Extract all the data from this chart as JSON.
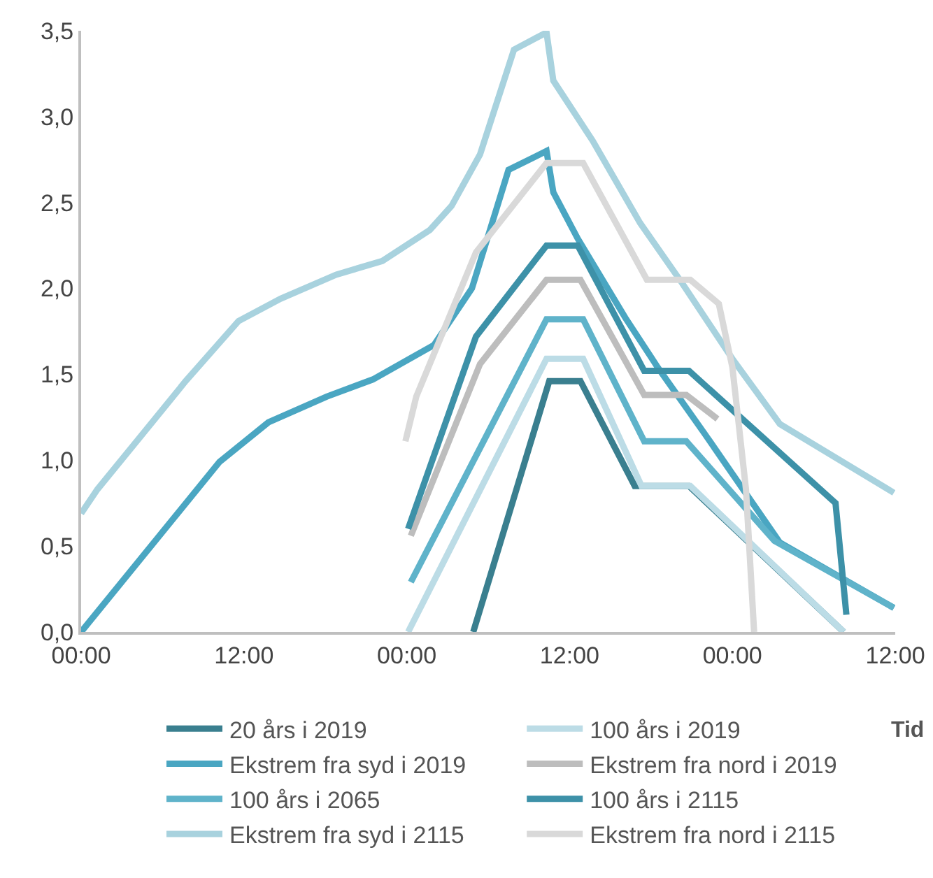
{
  "chart_data": {
    "type": "line",
    "xlabel": "Tid",
    "xlim": [
      "2019-01-01T00:00",
      "2019-01-03T12:00"
    ],
    "xticks": [
      {
        "value": "2019-01-01T00:00",
        "label": "00:00"
      },
      {
        "value": "2019-01-01T12:00",
        "label": "12:00"
      },
      {
        "value": "2019-01-02T00:00",
        "label": "00:00"
      },
      {
        "value": "2019-01-02T12:00",
        "label": "12:00"
      },
      {
        "value": "2019-01-03T00:00",
        "label": "00:00"
      },
      {
        "value": "2019-01-03T12:00",
        "label": "12:00"
      }
    ],
    "ylim": [
      0,
      3.5
    ],
    "yticks": [
      {
        "value": 0,
        "label": "0,0"
      },
      {
        "value": 0.5,
        "label": "0,5"
      },
      {
        "value": 1,
        "label": "1,0"
      },
      {
        "value": 1.5,
        "label": "1,5"
      },
      {
        "value": 2,
        "label": "2,0"
      },
      {
        "value": 2.5,
        "label": "2,5"
      },
      {
        "value": 3,
        "label": "3,0"
      },
      {
        "value": 3.5,
        "label": "3,5"
      }
    ],
    "grid": false,
    "legend": "bottom",
    "marker": "none",
    "line_style": "solid",
    "series": [
      {
        "name": "20 års i 2019",
        "color": "#3a7f8f",
        "x": [
          "2019-01-02T04:54",
          "2019-01-02T10:30",
          "2019-01-02T12:48",
          "2019-01-02T16:48",
          "2019-01-02T20:48",
          "2019-01-03T08:12"
        ],
        "values": [
          0,
          1.46,
          1.46,
          0.85,
          0.85,
          0
        ]
      },
      {
        "name": "100 års i 2019",
        "color": "#bcdce6",
        "x": [
          "2019-01-02T00:06",
          "2019-01-02T10:18",
          "2019-01-02T13:00",
          "2019-01-02T17:18",
          "2019-01-02T20:54",
          "2019-01-03T08:12"
        ],
        "values": [
          0,
          1.59,
          1.59,
          0.85,
          0.85,
          0
        ]
      },
      {
        "name": "Ekstrem fra syd i 2019",
        "color": "#4aa6c2",
        "x": [
          "2019-01-01T00:00",
          "2019-01-01T10:12",
          "2019-01-01T13:48",
          "2019-01-01T18:06",
          "2019-01-01T21:30",
          "2019-01-02T02:00",
          "2019-01-02T04:48",
          "2019-01-02T07:30",
          "2019-01-02T10:18",
          "2019-01-02T10:48",
          "2019-01-02T12:36",
          "2019-01-02T16:06",
          "2019-01-02T18:30",
          "2019-01-02T21:54",
          "2019-01-03T03:30",
          "2019-01-03T11:54"
        ],
        "values": [
          0,
          0.99,
          1.22,
          1.37,
          1.47,
          1.67,
          2.0,
          2.69,
          2.8,
          2.56,
          2.29,
          1.83,
          1.54,
          1.16,
          0.52,
          0.14
        ]
      },
      {
        "name": "Ekstrem fra nord i 2019",
        "color": "#bdbdbd",
        "x": [
          "2019-01-02T00:18",
          "2019-01-02T05:24",
          "2019-01-02T10:18",
          "2019-01-02T12:48",
          "2019-01-02T17:30",
          "2019-01-02T20:36",
          "2019-01-02T22:54"
        ],
        "values": [
          0.56,
          1.56,
          2.05,
          2.05,
          1.38,
          1.38,
          1.24
        ]
      },
      {
        "name": "100 års i 2065",
        "color": "#5fb3ca",
        "x": [
          "2019-01-02T00:18",
          "2019-01-02T10:18",
          "2019-01-02T13:00",
          "2019-01-02T17:30",
          "2019-01-02T20:36",
          "2019-01-03T03:06",
          "2019-01-03T11:54"
        ],
        "values": [
          0.29,
          1.82,
          1.82,
          1.11,
          1.11,
          0.53,
          0.14
        ]
      },
      {
        "name": "100 års i 2115",
        "color": "#3d91a8",
        "x": [
          "2019-01-02T00:06",
          "2019-01-02T05:06",
          "2019-01-02T10:18",
          "2019-01-02T12:36",
          "2019-01-02T17:30",
          "2019-01-02T20:48",
          "2019-01-03T07:36",
          "2019-01-03T08:24"
        ],
        "values": [
          0.6,
          1.72,
          2.25,
          2.25,
          1.52,
          1.52,
          0.75,
          0.1
        ]
      },
      {
        "name": "Ekstrem fra syd i 2115",
        "color": "#a8d2de",
        "x": [
          "2019-01-01T00:00",
          "2019-01-01T01:12",
          "2019-01-01T04:18",
          "2019-01-01T07:42",
          "2019-01-01T11:36",
          "2019-01-01T14:42",
          "2019-01-01T18:48",
          "2019-01-01T22:12",
          "2019-01-02T01:42",
          "2019-01-02T03:18",
          "2019-01-02T05:24",
          "2019-01-02T07:54",
          "2019-01-02T10:18",
          "2019-01-02T10:48",
          "2019-01-02T13:42",
          "2019-01-02T17:12",
          "2019-01-02T20:18",
          "2019-01-03T00:00",
          "2019-01-03T03:30",
          "2019-01-03T11:54"
        ],
        "values": [
          0.69,
          0.83,
          1.13,
          1.46,
          1.81,
          1.94,
          2.08,
          2.16,
          2.34,
          2.48,
          2.78,
          3.39,
          3.49,
          3.21,
          2.86,
          2.38,
          2.03,
          1.59,
          1.21,
          0.81
        ]
      },
      {
        "name": "Ekstrem fra nord i 2115",
        "color": "#d9d9d9",
        "x": [
          "2019-01-01T23:54",
          "2019-01-02T00:42",
          "2019-01-02T05:06",
          "2019-01-02T10:18",
          "2019-01-02T13:00",
          "2019-01-02T17:42",
          "2019-01-02T20:54",
          "2019-01-02T23:00",
          "2019-01-03T00:00",
          "2019-01-03T01:00",
          "2019-01-03T01:36"
        ],
        "values": [
          1.11,
          1.37,
          2.21,
          2.73,
          2.73,
          2.05,
          2.05,
          1.91,
          1.54,
          0.83,
          0
        ]
      }
    ]
  }
}
